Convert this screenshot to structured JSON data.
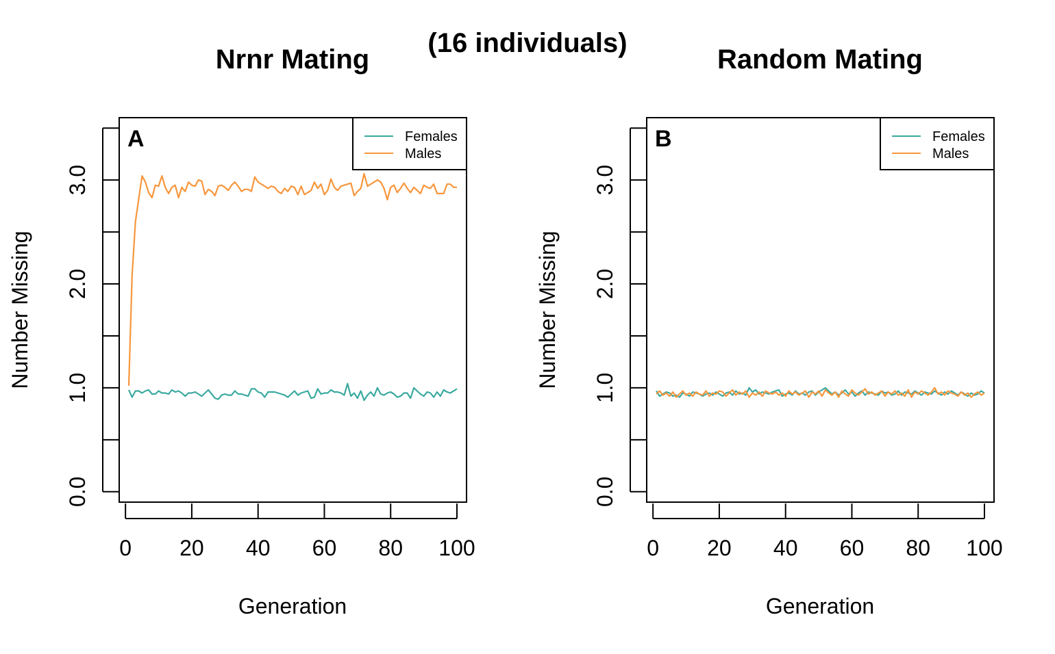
{
  "figure": {
    "supertitle": "(16 individuals)"
  },
  "colors": {
    "females": "#3aa9a0",
    "males": "#f7963c",
    "axis": "#000000"
  },
  "chart_data": [
    {
      "type": "line",
      "title": "Nrnr Mating",
      "panel_label": "A",
      "xlabel": "Generation",
      "ylabel": "Number Missing",
      "xlim": [
        1,
        100
      ],
      "ylim": [
        -0.1,
        3.6
      ],
      "xticks": [
        0,
        20,
        40,
        60,
        80,
        100
      ],
      "xtick_labels": [
        "0",
        "20",
        "40",
        "60",
        "80",
        "100"
      ],
      "yticks": [
        0,
        0.5,
        1,
        1.5,
        2,
        2.5,
        3,
        3.5
      ],
      "ytick_labels": [
        "0.0",
        "",
        "1.0",
        "",
        "2.0",
        "",
        "3.0",
        ""
      ],
      "grid": false,
      "legend_position": "top-right",
      "series": [
        {
          "name": "Females",
          "color": "#3aa9a0",
          "values": [
            0.98,
            0.91,
            0.97,
            0.97,
            0.95,
            0.97,
            0.98,
            0.94,
            0.94,
            0.97,
            0.95,
            0.95,
            0.94,
            0.98,
            0.96,
            0.97,
            0.95,
            0.92,
            0.95,
            0.95,
            0.96,
            0.94,
            0.92,
            0.95,
            0.98,
            0.94,
            0.9,
            0.89,
            0.93,
            0.94,
            0.93,
            0.93,
            0.97,
            0.94,
            0.94,
            0.93,
            0.92,
            0.99,
            0.99,
            0.96,
            0.95,
            0.91,
            0.96,
            0.96,
            0.96,
            0.95,
            0.94,
            0.93,
            0.91,
            0.94,
            0.97,
            0.93,
            0.95,
            0.96,
            0.97,
            0.9,
            0.91,
            0.99,
            0.94,
            0.95,
            0.95,
            0.98,
            0.96,
            0.96,
            0.95,
            0.93,
            1.04,
            0.92,
            0.95,
            0.9,
            0.97,
            0.88,
            0.93,
            0.96,
            0.92,
            1.0,
            0.94,
            0.93,
            0.95,
            0.96,
            0.94,
            0.91,
            0.92,
            0.95,
            0.95,
            0.9,
            1.0,
            0.97,
            0.94,
            0.92,
            0.96,
            0.95,
            0.91,
            0.96,
            0.92,
            0.98,
            0.96,
            0.95,
            0.97,
            0.99
          ]
        },
        {
          "name": "Males",
          "color": "#f7963c",
          "values": [
            1.02,
            2.08,
            2.6,
            2.82,
            3.04,
            2.98,
            2.88,
            2.83,
            2.95,
            2.94,
            3.04,
            2.93,
            2.87,
            2.93,
            2.95,
            2.83,
            2.93,
            2.89,
            2.98,
            2.95,
            2.94,
            3.0,
            2.99,
            2.86,
            2.91,
            2.89,
            2.85,
            2.94,
            2.95,
            2.93,
            2.9,
            2.95,
            2.98,
            2.94,
            2.89,
            2.91,
            2.91,
            2.89,
            3.03,
            2.98,
            2.96,
            2.94,
            2.92,
            2.94,
            2.93,
            2.89,
            2.87,
            2.92,
            2.89,
            2.94,
            2.93,
            2.86,
            2.94,
            2.86,
            2.88,
            2.9,
            2.98,
            2.92,
            2.96,
            2.86,
            2.9,
            3.01,
            2.93,
            2.9,
            2.94,
            2.95,
            2.96,
            2.97,
            2.85,
            2.89,
            2.92,
            3.06,
            2.94,
            2.96,
            2.98,
            3.0,
            2.98,
            2.92,
            2.81,
            2.93,
            2.95,
            2.88,
            2.92,
            2.97,
            2.92,
            2.88,
            2.93,
            2.9,
            2.87,
            2.95,
            2.93,
            2.92,
            2.96,
            2.87,
            2.87,
            2.87,
            2.96,
            2.96,
            2.93,
            2.93
          ]
        }
      ]
    },
    {
      "type": "line",
      "title": "Random Mating",
      "panel_label": "B",
      "xlabel": "Generation",
      "ylabel": "Number Missing",
      "xlim": [
        1,
        100
      ],
      "ylim": [
        -0.1,
        3.6
      ],
      "xticks": [
        0,
        20,
        40,
        60,
        80,
        100
      ],
      "xtick_labels": [
        "0",
        "20",
        "40",
        "60",
        "80",
        "100"
      ],
      "yticks": [
        0,
        0.5,
        1,
        1.5,
        2,
        2.5,
        3,
        3.5
      ],
      "ytick_labels": [
        "0.0",
        "",
        "1.0",
        "",
        "2.0",
        "",
        "3.0",
        ""
      ],
      "grid": false,
      "legend_position": "top-right",
      "series": [
        {
          "name": "Females",
          "color": "#3aa9a0",
          "values": [
            0.97,
            0.92,
            0.94,
            0.96,
            0.95,
            0.92,
            0.93,
            0.91,
            0.95,
            0.94,
            0.92,
            0.96,
            0.95,
            0.94,
            0.92,
            0.94,
            0.95,
            0.93,
            0.96,
            0.94,
            0.92,
            0.95,
            0.96,
            0.93,
            0.97,
            0.94,
            0.95,
            0.93,
            1.0,
            0.96,
            0.98,
            0.94,
            0.96,
            0.95,
            0.94,
            0.96,
            0.97,
            0.98,
            0.92,
            0.94,
            0.95,
            0.93,
            0.97,
            0.94,
            0.95,
            0.93,
            0.96,
            0.97,
            0.93,
            0.96,
            0.98,
            1.0,
            0.97,
            0.94,
            0.96,
            0.93,
            0.95,
            0.98,
            0.94,
            0.96,
            0.92,
            0.95,
            0.97,
            0.93,
            0.96,
            0.95,
            0.94,
            0.93,
            0.97,
            0.95,
            0.96,
            0.93,
            0.94,
            0.97,
            0.93,
            0.96,
            0.95,
            0.94,
            0.97,
            0.95,
            0.93,
            0.96,
            0.95,
            0.94,
            0.97,
            0.95,
            0.93,
            0.96,
            0.94,
            0.97,
            0.95,
            0.93,
            0.96,
            0.94,
            0.92,
            0.95,
            0.93,
            0.94,
            0.97,
            0.95
          ]
        },
        {
          "name": "Males",
          "color": "#f7963c",
          "values": [
            0.94,
            0.97,
            0.93,
            0.95,
            0.92,
            0.96,
            0.91,
            0.94,
            0.97,
            0.93,
            0.95,
            0.92,
            0.96,
            0.94,
            0.93,
            0.97,
            0.92,
            0.95,
            0.94,
            0.97,
            0.96,
            0.92,
            0.95,
            0.98,
            0.93,
            0.96,
            0.94,
            0.97,
            0.91,
            0.95,
            0.93,
            0.96,
            0.92,
            0.97,
            0.95,
            0.94,
            0.96,
            0.93,
            0.95,
            0.92,
            0.97,
            0.94,
            0.96,
            0.93,
            0.95,
            0.97,
            0.91,
            0.96,
            0.94,
            0.97,
            0.92,
            0.98,
            0.95,
            0.93,
            0.96,
            0.91,
            0.97,
            0.94,
            0.92,
            0.98,
            0.95,
            0.93,
            0.96,
            0.99,
            0.94,
            0.96,
            0.93,
            0.95,
            0.97,
            0.92,
            0.96,
            0.94,
            0.97,
            0.93,
            0.95,
            0.92,
            0.98,
            0.91,
            0.96,
            0.94,
            0.97,
            0.95,
            0.93,
            0.96,
            1.0,
            0.94,
            0.96,
            0.93,
            0.97,
            0.95,
            0.94,
            0.92,
            0.96,
            0.93,
            0.95,
            0.91,
            0.94,
            0.96,
            0.93,
            0.95
          ]
        }
      ]
    }
  ]
}
